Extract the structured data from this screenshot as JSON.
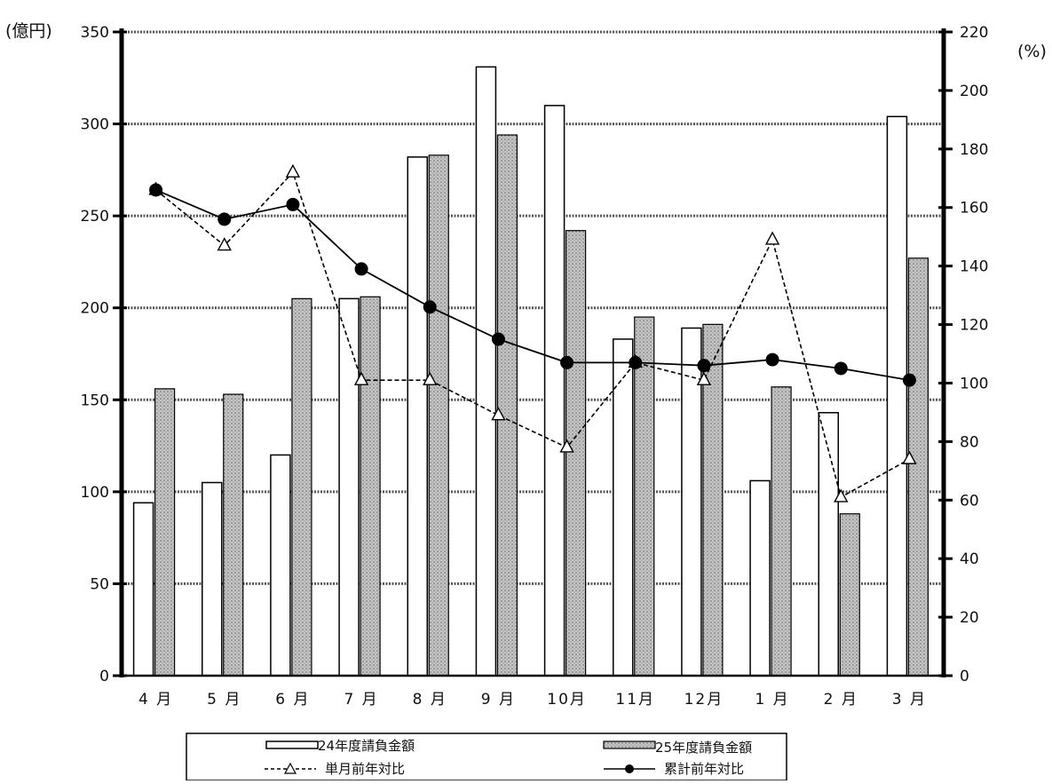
{
  "chart_data": {
    "type": "bar",
    "categories": [
      "4 月",
      "5 月",
      "6 月",
      "7 月",
      "8 月",
      "9 月",
      "10月",
      "11月",
      "12月",
      "1 月",
      "2 月",
      "3 月"
    ],
    "y_left": {
      "unit_label": "(億円)",
      "ylim": [
        0,
        350
      ],
      "ticks": [
        "0",
        "50",
        "100",
        "150",
        "200",
        "250",
        "300",
        "350"
      ]
    },
    "y_right": {
      "unit_label": "(%)",
      "ylim": [
        0,
        220
      ],
      "ticks": [
        "0",
        "20",
        "40",
        "60",
        "80",
        "100",
        "120",
        "140",
        "160",
        "180",
        "200",
        "220"
      ]
    },
    "grid": true,
    "legend_position": "bottom",
    "series": [
      {
        "name": "24年度請負金額",
        "kind": "bar",
        "axis": "left",
        "style": "white",
        "values": [
          94,
          105,
          120,
          205,
          282,
          331,
          310,
          183,
          189,
          106,
          143,
          304
        ]
      },
      {
        "name": "25年度請負金額",
        "kind": "bar",
        "axis": "left",
        "style": "hatched",
        "values": [
          156,
          153,
          205,
          206,
          283,
          294,
          242,
          195,
          191,
          157,
          88,
          227
        ]
      },
      {
        "name": "単月前年対比",
        "kind": "line",
        "axis": "right",
        "marker": "triangle",
        "dash": true,
        "values": [
          166,
          147,
          172,
          101,
          101,
          89,
          78,
          107,
          101,
          149,
          61,
          74
        ]
      },
      {
        "name": "累計前年対比",
        "kind": "line",
        "axis": "right",
        "marker": "circle",
        "dash": false,
        "values": [
          166,
          156,
          161,
          139,
          126,
          115,
          107,
          107,
          106,
          108,
          105,
          101
        ]
      }
    ],
    "colors": {
      "bar_white": "#ffffff",
      "bar_hatched": "#b8b8b8",
      "axis": "#000000",
      "grid": "#555555"
    }
  }
}
